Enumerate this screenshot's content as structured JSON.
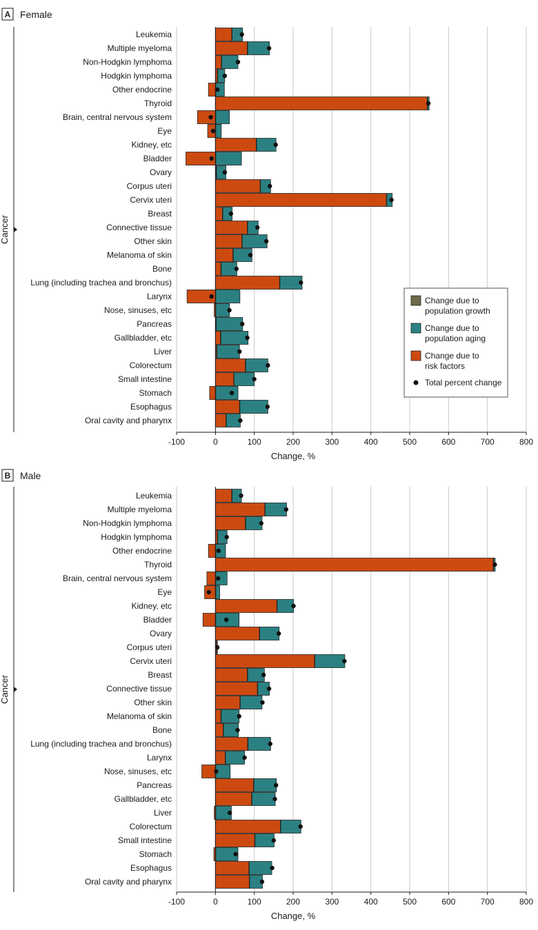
{
  "colors": {
    "growth": "#6e6a4a",
    "aging": "#2b8182",
    "risk": "#cc4a10",
    "point": "#111111",
    "grid": "#c8c8c8"
  },
  "legend": {
    "growth": "Change due to population growth",
    "aging": "Change due to population aging",
    "risk": "Change due to risk factors",
    "total": "Total percent change"
  },
  "chart_data": [
    {
      "type": "bar",
      "panel": "A",
      "title": "Female",
      "xlabel": "Change, %",
      "ylabel": "Cancer",
      "xlim": [
        -100,
        800
      ],
      "xticks": [
        -100,
        0,
        100,
        200,
        300,
        400,
        500,
        600,
        700,
        800
      ],
      "grid": true,
      "legend_position": "bottom-right",
      "categories": [
        "Leukemia",
        "Multiple myeloma",
        "Non-Hodgkin lymphoma",
        "Hodgkin lymphoma",
        "Other endocrine",
        "Thyroid",
        "Brain, central nervous system",
        "Eye",
        "Kidney, etc",
        "Bladder",
        "Ovary",
        "Corpus uteri",
        "Cervix uteri",
        "Breast",
        "Connective tissue",
        "Other skin",
        "Melanoma of skin",
        "Bone",
        "Lung (including trachea and bronchus)",
        "Larynx",
        "Nose, sinuses, etc",
        "Pancreas",
        "Gallbladder, etc",
        "Liver",
        "Colorectum",
        "Small intestine",
        "Stomach",
        "Esophagus",
        "Oral cavity and pharynx"
      ],
      "series": [
        {
          "name": "Change due to population growth",
          "values": [
            1,
            1,
            1,
            1,
            1,
            1,
            1,
            1,
            1,
            1,
            1,
            1,
            1,
            1,
            1,
            1,
            1,
            1,
            1,
            1,
            1,
            1,
            1,
            1,
            1,
            1,
            1,
            1,
            1
          ]
        },
        {
          "name": "Change due to risk factors",
          "values": [
            42,
            82,
            15,
            5,
            -18,
            545,
            -46,
            -20,
            105,
            -76,
            2,
            115,
            440,
            18,
            82,
            68,
            45,
            14,
            165,
            -73,
            -3,
            1,
            13,
            3,
            77,
            47,
            -15,
            62,
            27
          ]
        },
        {
          "name": "Change due to population aging",
          "values": [
            27,
            56,
            42,
            18,
            22,
            4,
            35,
            14,
            50,
            66,
            24,
            26,
            14,
            24,
            27,
            64,
            48,
            40,
            57,
            62,
            35,
            68,
            70,
            58,
            57,
            52,
            57,
            72,
            36
          ]
        },
        {
          "name": "Total percent change",
          "values": [
            68,
            138,
            58,
            24,
            5,
            548,
            -12,
            -6,
            155,
            -10,
            24,
            140,
            453,
            40,
            108,
            131,
            90,
            54,
            220,
            -10,
            36,
            69,
            82,
            62,
            135,
            100,
            42,
            134,
            64
          ]
        }
      ]
    },
    {
      "type": "bar",
      "panel": "B",
      "title": "Male",
      "xlabel": "Change, %",
      "ylabel": "Cancer",
      "xlim": [
        -100,
        800
      ],
      "xticks": [
        -100,
        0,
        100,
        200,
        300,
        400,
        500,
        600,
        700,
        800
      ],
      "grid": true,
      "categories": [
        "Leukemia",
        "Multiple myeloma",
        "Non-Hodgkin lymphoma",
        "Hodgkin lymphoma",
        "Other endocrine",
        "Thyroid",
        "Brain, central nervous system",
        "Eye",
        "Kidney, etc",
        "Bladder",
        "Ovary",
        "Corpus uteri",
        "Cervix uteri",
        "Breast",
        "Connective tissue",
        "Other skin",
        "Melanoma of skin",
        "Bone",
        "Lung (including trachea and bronchus)",
        "Larynx",
        "Nose, sinuses, etc",
        "Pancreas",
        "Gallbladder, etc",
        "Liver",
        "Colorectum",
        "Small intestine",
        "Stomach",
        "Esophagus",
        "Oral cavity and pharynx"
      ],
      "series": [
        {
          "name": "Change due to population growth",
          "values": [
            1,
            1,
            1,
            1,
            1,
            1,
            1,
            1,
            1,
            1,
            1,
            1,
            1,
            1,
            1,
            1,
            1,
            1,
            1,
            1,
            1,
            1,
            1,
            1,
            1,
            1,
            1,
            1,
            1
          ]
        },
        {
          "name": "Change due to risk factors",
          "values": [
            42,
            127,
            77,
            5,
            -18,
            715,
            -22,
            -28,
            158,
            -32,
            113,
            3,
            255,
            82,
            108,
            63,
            14,
            20,
            83,
            25,
            -35,
            98,
            93,
            -3,
            167,
            101,
            -4,
            86,
            87
          ]
        },
        {
          "name": "Change due to population aging",
          "values": [
            24,
            55,
            42,
            24,
            25,
            4,
            29,
            10,
            42,
            60,
            50,
            1,
            77,
            43,
            30,
            56,
            46,
            38,
            58,
            49,
            37,
            58,
            60,
            40,
            52,
            49,
            57,
            58,
            33
          ]
        },
        {
          "name": "Total percent change",
          "values": [
            66,
            182,
            118,
            29,
            8,
            719,
            7,
            -17,
            201,
            28,
            163,
            5,
            332,
            124,
            138,
            121,
            61,
            57,
            141,
            75,
            2,
            156,
            153,
            37,
            219,
            150,
            52,
            146,
            120
          ]
        }
      ]
    }
  ]
}
